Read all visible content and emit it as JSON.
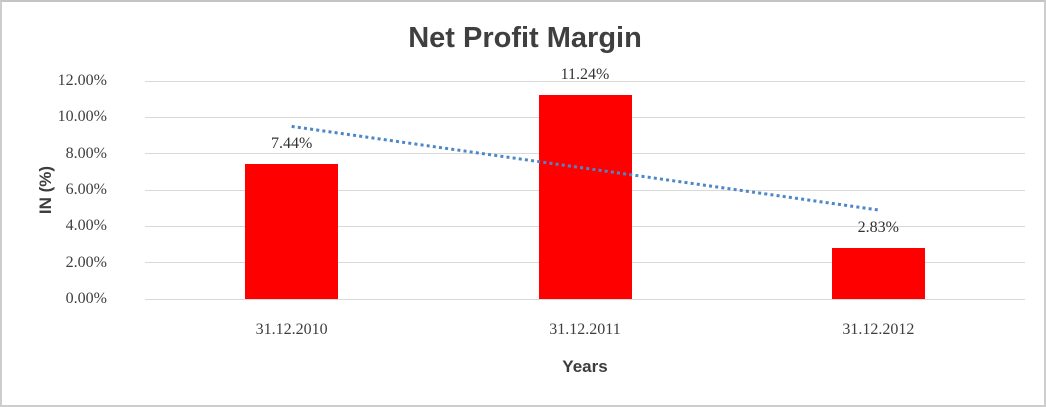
{
  "chart_data": {
    "type": "bar",
    "title": "Net Profit Margin",
    "xlabel": "Years",
    "ylabel": "IN (%)",
    "categories": [
      "31.12.2010",
      "31.12.2011",
      "31.12.2012"
    ],
    "series": [
      {
        "name": "Net Profit Margin",
        "values": [
          7.44,
          11.24,
          2.83
        ]
      }
    ],
    "data_labels": [
      "7.44%",
      "11.24%",
      "2.83%"
    ],
    "ylim": [
      0,
      12
    ],
    "y_tick_step": 2,
    "y_tick_labels": [
      "0.00%",
      "2.00%",
      "4.00%",
      "6.00%",
      "8.00%",
      "10.00%",
      "12.00%"
    ],
    "grid": true,
    "legend": "none",
    "colors": {
      "bar": "#FF0000",
      "trendline": "#4E87C8",
      "gridline": "#D9D9D9",
      "title_text": "#3F3F3F",
      "tick_text": "#3D3D3D"
    },
    "trendline": {
      "style": "dotted",
      "start_value": 9.5,
      "end_value": 4.9
    }
  }
}
